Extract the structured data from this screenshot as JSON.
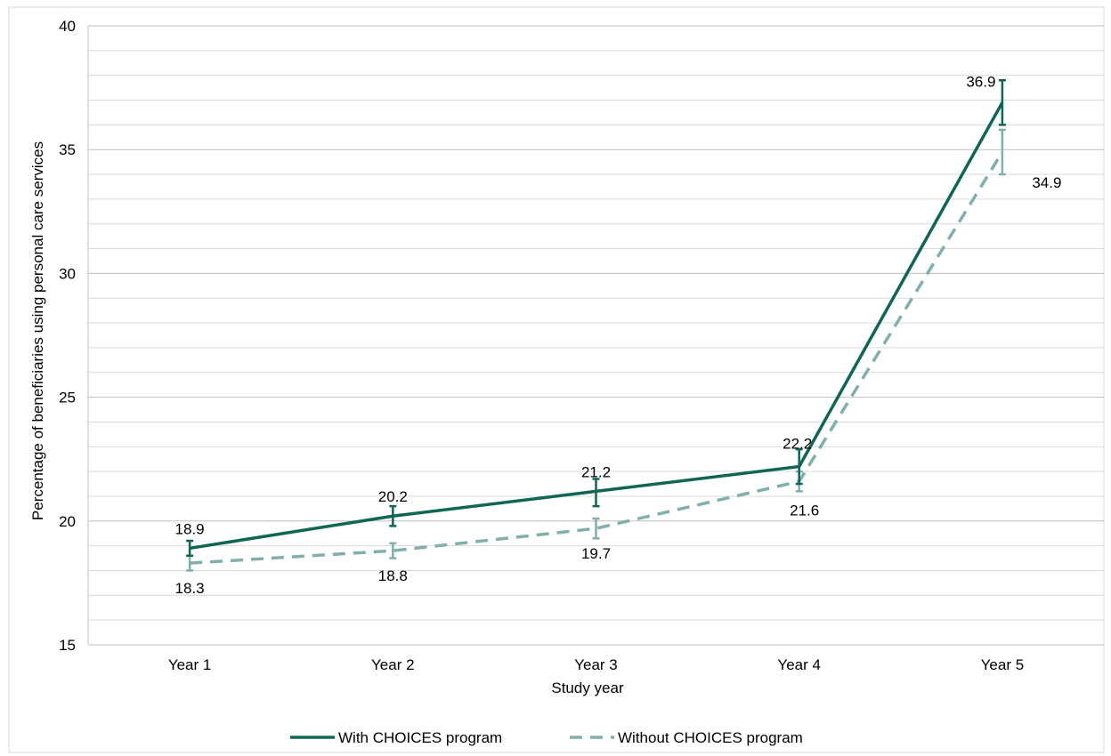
{
  "chart_data": {
    "type": "line",
    "title": "",
    "xlabel": "Study year",
    "ylabel": "Percentage of beneficiaries using personal care services",
    "categories": [
      "Year 1",
      "Year 2",
      "Year 3",
      "Year 4",
      "Year 5"
    ],
    "ylim": [
      15,
      40
    ],
    "yticks": [
      "15",
      "20",
      "25",
      "30",
      "35",
      "40"
    ],
    "minor_gridlines": true,
    "legend_position": "bottom",
    "series": [
      {
        "name": "With CHOICES program",
        "style": "solid",
        "color": "#0e6655",
        "values": [
          18.9,
          20.2,
          21.2,
          22.2,
          36.9
        ],
        "labels": [
          "18.9",
          "20.2",
          "21.2",
          "22.2",
          "36.9"
        ],
        "error_low": [
          18.6,
          19.8,
          20.6,
          21.5,
          36.0
        ],
        "error_high": [
          19.2,
          20.6,
          21.7,
          22.9,
          37.8
        ]
      },
      {
        "name": "Without CHOICES program",
        "style": "dashed",
        "color": "#7fb0ab",
        "values": [
          18.3,
          18.8,
          19.7,
          21.6,
          34.9
        ],
        "labels": [
          "18.3",
          "18.8",
          "19.7",
          "21.6",
          "34.9"
        ],
        "error_low": [
          18.0,
          18.5,
          19.3,
          21.2,
          34.0
        ],
        "error_high": [
          18.6,
          19.1,
          20.1,
          22.0,
          35.8
        ]
      }
    ]
  }
}
